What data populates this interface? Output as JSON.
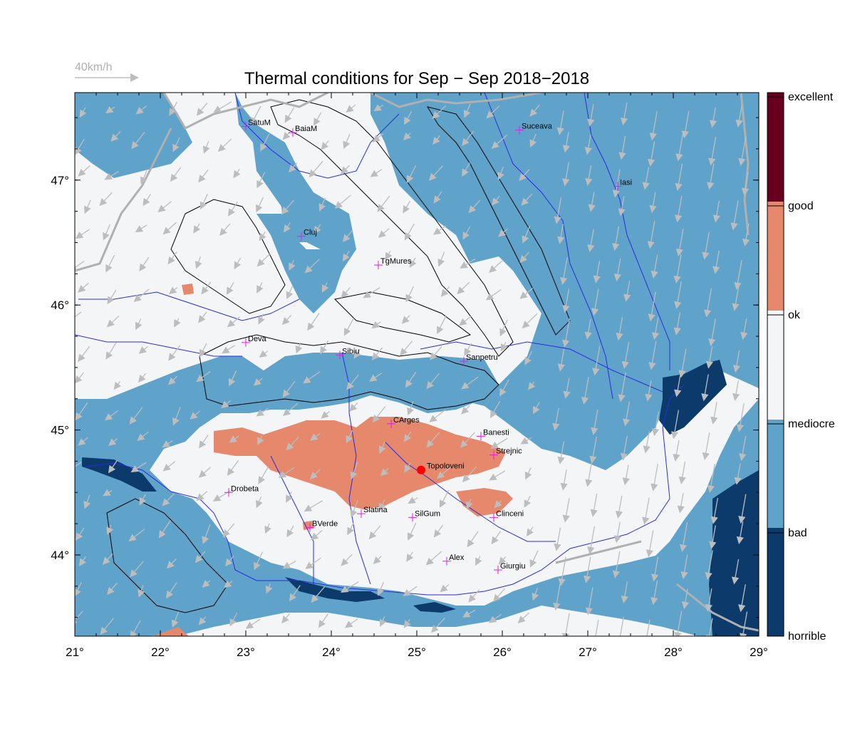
{
  "title": "Thermal conditions for Sep − Sep  2018−2018",
  "wind_scale": {
    "label": "40km/h",
    "color": "#bdbdbd"
  },
  "axes": {
    "lon_range": [
      21,
      29
    ],
    "lat_range": [
      43.35,
      47.7
    ],
    "x_ticks": [
      {
        "value": 21,
        "label": "21°"
      },
      {
        "value": 22,
        "label": "22°"
      },
      {
        "value": 23,
        "label": "23°"
      },
      {
        "value": 24,
        "label": "24°"
      },
      {
        "value": 25,
        "label": "25°"
      },
      {
        "value": 26,
        "label": "26°"
      },
      {
        "value": 27,
        "label": "27°"
      },
      {
        "value": 28,
        "label": "28°"
      },
      {
        "value": 29,
        "label": "29°"
      }
    ],
    "y_ticks": [
      {
        "value": 44,
        "label": "44°"
      },
      {
        "value": 45,
        "label": "45°"
      },
      {
        "value": 46,
        "label": "46°"
      },
      {
        "value": 47,
        "label": "47°"
      }
    ]
  },
  "legend": {
    "classes": [
      {
        "label": "excellent",
        "color": "#67001f"
      },
      {
        "label": "good",
        "color": "#e6886b"
      },
      {
        "label": "ok",
        "color": "#f4f5f7"
      },
      {
        "label": "mediocre",
        "color": "#5fa3cb"
      },
      {
        "label": "bad",
        "color": "#0b3a6b"
      },
      {
        "label": "horrible",
        "color": "#0b3a6b"
      }
    ]
  },
  "colors": {
    "background_class": "#f4f5f7",
    "bad": "#5fa3cb",
    "horrible": "#0b3a6b",
    "ok_good": "#e6886b",
    "rivers": "#2b2bdc",
    "borders": "#b0b0b0",
    "contours": "#000000",
    "city_marker": "#e020e0",
    "highlight_marker": "#ff0000",
    "wind_arrows": "#bdbdbd"
  },
  "cities": [
    {
      "name": "SatuM",
      "lon": 23.0,
      "lat": 47.43
    },
    {
      "name": "BaiaM",
      "lon": 23.55,
      "lat": 47.38
    },
    {
      "name": "Suceava",
      "lon": 26.2,
      "lat": 47.4
    },
    {
      "name": "Iasi",
      "lon": 27.35,
      "lat": 46.95
    },
    {
      "name": "Cluj",
      "lon": 23.65,
      "lat": 46.55
    },
    {
      "name": "TgMures",
      "lon": 24.55,
      "lat": 46.32
    },
    {
      "name": "Deva",
      "lon": 23.0,
      "lat": 45.7
    },
    {
      "name": "Sibiu",
      "lon": 24.1,
      "lat": 45.6
    },
    {
      "name": "Sanpetru",
      "lon": 25.55,
      "lat": 45.55
    },
    {
      "name": "CArges",
      "lon": 24.7,
      "lat": 45.05
    },
    {
      "name": "Banesti",
      "lon": 25.75,
      "lat": 44.95
    },
    {
      "name": "Strejnic",
      "lon": 25.9,
      "lat": 44.8
    },
    {
      "name": "Drobeta",
      "lon": 22.8,
      "lat": 44.5
    },
    {
      "name": "Slatina",
      "lon": 24.35,
      "lat": 44.33
    },
    {
      "name": "SilGum",
      "lon": 24.95,
      "lat": 44.3
    },
    {
      "name": "Clinceni",
      "lon": 25.9,
      "lat": 44.3
    },
    {
      "name": "BVerde",
      "lon": 23.75,
      "lat": 44.22
    },
    {
      "name": "Alex",
      "lon": 25.35,
      "lat": 43.95
    },
    {
      "name": "Giurgiu",
      "lon": 25.95,
      "lat": 43.88
    }
  ],
  "highlight_point": {
    "name": "Topoloveni",
    "lon": 25.05,
    "lat": 44.68
  }
}
